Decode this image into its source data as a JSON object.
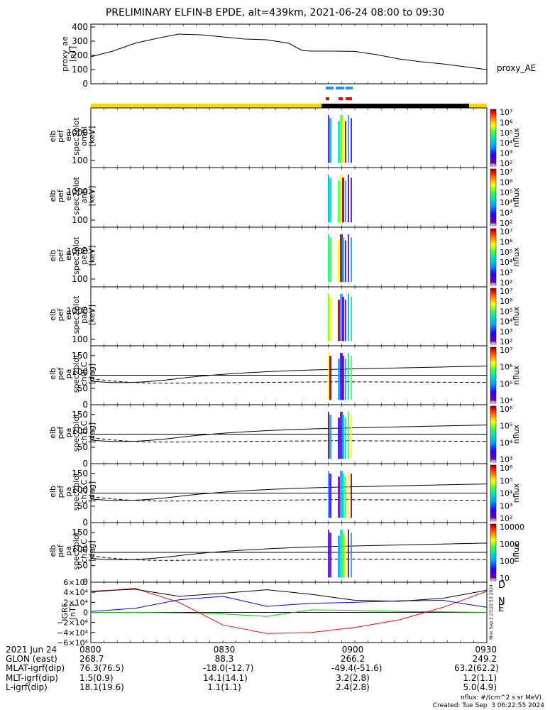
{
  "title": "PRELIMINARY ELFIN-B EPDE, alt=439km, 2021-06-24 08:00 to 09:30",
  "chart_data": [
    {
      "type": "line",
      "ylabel": "proxy_ae [nT]",
      "legend": "proxy_AE",
      "yticks": [
        "400",
        "300",
        "200",
        "100",
        "0"
      ],
      "ylim": [
        0,
        420
      ],
      "x_minutes": [
        0,
        5,
        10,
        15,
        20,
        25,
        30,
        35,
        40,
        45,
        48,
        50,
        55,
        60,
        65,
        70,
        75,
        80,
        85,
        90
      ],
      "values": [
        190,
        230,
        285,
        320,
        350,
        345,
        330,
        315,
        310,
        285,
        235,
        230,
        230,
        228,
        205,
        175,
        155,
        140,
        120,
        100
      ]
    },
    {
      "type": "heatmap",
      "ylabel": [
        "elb",
        "pef",
        "en",
        "spec2plot",
        "omni",
        "[keV]"
      ],
      "yticks": [
        "1000",
        "100"
      ],
      "yscale": "log",
      "cbar_label": "nflux",
      "cbar_ticks": [
        "10⁷",
        "10⁶",
        "10⁵",
        "10⁴",
        "10³",
        "10²"
      ]
    },
    {
      "type": "heatmap",
      "ylabel": [
        "elb",
        "pef",
        "en",
        "spec2plot",
        "anti",
        "[keV]"
      ],
      "yticks": [
        "1000",
        "100"
      ],
      "yscale": "log",
      "cbar_label": "nflux",
      "cbar_ticks": [
        "10⁷",
        "10⁶",
        "10⁵",
        "10⁴",
        "10³",
        "10²"
      ]
    },
    {
      "type": "heatmap",
      "ylabel": [
        "elb",
        "pef",
        "en",
        "spec2plot",
        "perp",
        "[keV]"
      ],
      "yticks": [
        "1000",
        "100"
      ],
      "yscale": "log",
      "cbar_label": "nflux",
      "cbar_ticks": [
        "10⁷",
        "10⁶",
        "10⁵",
        "10⁴",
        "10³",
        "10²"
      ]
    },
    {
      "type": "heatmap",
      "ylabel": [
        "elb",
        "pef",
        "en",
        "spec2plot",
        "para",
        "[keV]"
      ],
      "yticks": [
        "1000",
        "100"
      ],
      "yscale": "log",
      "cbar_label": "nflux",
      "cbar_ticks": [
        "10⁷",
        "10⁶",
        "10⁵",
        "10⁴",
        "10³",
        "10²"
      ]
    },
    {
      "type": "heatmap",
      "ylabel": [
        "elb",
        "pef",
        "pa",
        "spec2plot",
        "ch0LC",
        "[deg]"
      ],
      "yticks": [
        "150",
        "100",
        "50",
        "0"
      ],
      "cbar_label": "nflux",
      "cbar_ticks": [
        "10⁷",
        "10⁶",
        "10⁵",
        "10⁴"
      ]
    },
    {
      "type": "heatmap",
      "ylabel": [
        "elb",
        "pef",
        "pa",
        "spec2plot",
        "ch1LC",
        "[deg]"
      ],
      "yticks": [
        "150",
        "100",
        "50",
        "0"
      ],
      "cbar_label": "nflux",
      "cbar_ticks": [
        "10⁶",
        "10⁵",
        "10⁴",
        "10³"
      ]
    },
    {
      "type": "heatmap",
      "ylabel": [
        "elb",
        "pef",
        "pa",
        "spec2plot",
        "ch2LC",
        "[deg]"
      ],
      "yticks": [
        "150",
        "100",
        "50",
        "0"
      ],
      "cbar_label": "nflux",
      "cbar_ticks": [
        "10⁶",
        "10⁵",
        "10⁴",
        "10³",
        "10²"
      ]
    },
    {
      "type": "heatmap",
      "ylabel": [
        "elb",
        "pef",
        "pa",
        "spec2plot",
        "ch3LC",
        "[deg]"
      ],
      "yticks": [
        "150",
        "100",
        "50",
        "0"
      ],
      "cbar_label": "nflux",
      "cbar_ticks": [
        "10000",
        "1000",
        "100",
        "10"
      ]
    },
    {
      "type": "line",
      "ylabel": "IGRF [nT]",
      "yticks": [
        "6×10⁴",
        "4×10⁴",
        "2×10⁴",
        "0",
        "−2×10⁴",
        "−4×10⁴",
        "−6×10⁴"
      ],
      "ylim": [
        -60000,
        60000
      ],
      "x_minutes": [
        0,
        10,
        20,
        30,
        40,
        50,
        60,
        70,
        80,
        90
      ],
      "series": [
        {
          "name": "D",
          "color": "#ff0000",
          "values": [
            40000,
            48000,
            20000,
            -25000,
            -42000,
            -40000,
            -30000,
            -15000,
            10000,
            42000
          ]
        },
        {
          "name": "N",
          "color": "#0000ff",
          "values": [
            2000,
            8000,
            25000,
            32000,
            12000,
            18000,
            20000,
            23000,
            24000,
            10000
          ]
        },
        {
          "name": "E",
          "color": "#00cc00",
          "values": [
            0,
            0,
            -1000,
            -3000,
            -8000,
            5000,
            4000,
            2000,
            1000,
            0
          ]
        },
        {
          "name": "",
          "color": "#000000",
          "values": [
            42000,
            46000,
            32000,
            38000,
            45000,
            36000,
            24000,
            22000,
            28000,
            44000
          ]
        }
      ]
    }
  ],
  "created_vertical": "Mon Sep 2 23:22:53 2024",
  "footer": {
    "rows": [
      {
        "label": "2021 Jun 24",
        "values": [
          "0800",
          "0830",
          "0900",
          "0930"
        ]
      },
      {
        "label": "GLON (east)",
        "values": [
          "268.7",
          "88.3",
          "266.2",
          "249.2"
        ]
      },
      {
        "label": "MLAT-igrf(dip)",
        "values": [
          "76.3(76.5)",
          "-18.0(-12.7)",
          "-49.4(-51.6)",
          "63.2(62.2)"
        ]
      },
      {
        "label": "MLT-igrf(dip)",
        "values": [
          "1.5(0.9)",
          "14.1(14.1)",
          "3.2(2.8)",
          "1.2(1.1)"
        ]
      },
      {
        "label": "L-igrf(dip)",
        "values": [
          "18.1(19.6)",
          "1.1(1.1)",
          "2.4(2.8)",
          "5.0(4.9)"
        ]
      }
    ],
    "units_note": "nflux: #/(cm^2 s sr MeV)",
    "created": "Created: Tue Sep  3 06:22:55 2024"
  },
  "colors": {
    "sunlight": "#ffd700",
    "eclipse": "#000000",
    "science_blue": "#1e90ff",
    "science_red": "#ff0000"
  }
}
